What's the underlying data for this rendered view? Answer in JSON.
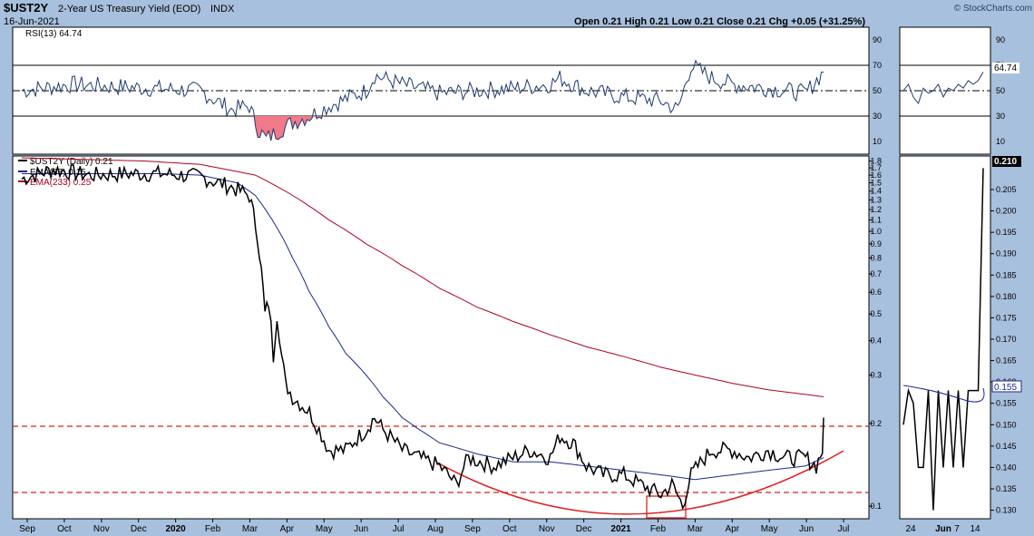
{
  "header": {
    "symbol": "$UST2Y",
    "name": "2-Year US Treasury Yield (EOD)",
    "exchange": "INDX",
    "date": "16-Jun-2021",
    "ohlc": "Open 0.21  High 0.21  Low 0.21  Close 0.21  Chg +0.05 (+31.25%)",
    "brand": "© StockCharts.com"
  },
  "rsi_panel": {
    "label": "RSI(13) 64.74",
    "value_label": "64.74",
    "ticks": [
      "90",
      "70",
      "50",
      "30",
      "10"
    ]
  },
  "price_panel": {
    "legend": [
      {
        "label": "$UST2Y (Daily) 0.21",
        "color": "#000000"
      },
      {
        "label": "EMA(55) 0.15",
        "color": "#1a2a8a"
      },
      {
        "label": "EMA(233) 0.25",
        "color": "#b00020"
      }
    ],
    "ticks": [
      "1.8",
      "1.7",
      "1.6",
      "1.5",
      "1.4",
      "1.3",
      "1.2",
      "1.1",
      "1.0",
      "0.9",
      "0.8",
      "0.7",
      "0.6",
      "0.5",
      "0.4",
      "0.3",
      "0.2",
      "0.1"
    ],
    "last_value_label": "0.210"
  },
  "zoom_panel": {
    "ticks": [
      "0.205",
      "0.200",
      "0.195",
      "0.190",
      "0.185",
      "0.180",
      "0.175",
      "0.170",
      "0.165",
      "0.160",
      "0.155",
      "0.150",
      "0.145",
      "0.140",
      "0.135",
      "0.130"
    ],
    "last_value_label": "0.210",
    "ema_value_label": "0.155",
    "x_labels": [
      "24",
      "Jun",
      "7",
      "14"
    ]
  },
  "x_axis_labels": [
    "Sep",
    "Oct",
    "Nov",
    "Dec",
    "2020",
    "Feb",
    "Mar",
    "Apr",
    "May",
    "Jun",
    "Jul",
    "Aug",
    "Sep",
    "Oct",
    "Nov",
    "Dec",
    "2021",
    "Feb",
    "Mar",
    "Apr",
    "May",
    "Jun",
    "Jul"
  ],
  "colors": {
    "background": "#a7c0dd",
    "panel": "#ffffff",
    "price": "#000000",
    "ema55": "#1a2a8a",
    "ema233": "#b00020",
    "rsi": "#1e3a6e",
    "rsi_fill": "#f07a8a",
    "annotation": "#d42020"
  },
  "chart_data": {
    "type": "line",
    "scale": "log",
    "x_range": [
      "2019-08-20",
      "2021-06-16"
    ],
    "ylim": [
      0.09,
      1.85
    ],
    "series": [
      {
        "name": "$UST2Y (Daily)",
        "x": [
          "2019-08-20",
          "2019-09-15",
          "2019-10-15",
          "2019-11-15",
          "2019-12-15",
          "2020-01-15",
          "2020-02-10",
          "2020-02-25",
          "2020-03-03",
          "2020-03-06",
          "2020-03-09",
          "2020-03-12",
          "2020-03-16",
          "2020-03-19",
          "2020-03-23",
          "2020-03-26",
          "2020-04-01",
          "2020-04-15",
          "2020-05-01",
          "2020-05-15",
          "2020-06-01",
          "2020-06-08",
          "2020-06-15",
          "2020-07-01",
          "2020-07-15",
          "2020-08-01",
          "2020-08-15",
          "2020-08-25",
          "2020-09-15",
          "2020-10-01",
          "2020-10-15",
          "2020-11-01",
          "2020-11-09",
          "2020-11-20",
          "2020-12-01",
          "2020-12-15",
          "2021-01-01",
          "2021-01-15",
          "2021-02-01",
          "2021-02-10",
          "2021-02-19",
          "2021-02-26",
          "2021-03-15",
          "2021-04-01",
          "2021-04-15",
          "2021-05-01",
          "2021-05-15",
          "2021-06-01",
          "2021-06-10",
          "2021-06-15",
          "2021-06-16"
        ],
        "y": [
          1.55,
          1.68,
          1.6,
          1.62,
          1.62,
          1.58,
          1.45,
          1.35,
          0.95,
          0.72,
          0.5,
          0.55,
          0.35,
          0.5,
          0.35,
          0.28,
          0.25,
          0.22,
          0.16,
          0.16,
          0.19,
          0.21,
          0.19,
          0.16,
          0.15,
          0.14,
          0.12,
          0.15,
          0.14,
          0.15,
          0.16,
          0.15,
          0.18,
          0.17,
          0.14,
          0.13,
          0.13,
          0.12,
          0.11,
          0.12,
          0.1,
          0.13,
          0.16,
          0.16,
          0.15,
          0.16,
          0.15,
          0.15,
          0.14,
          0.16,
          0.21
        ]
      },
      {
        "name": "EMA(55)",
        "x": [
          "2019-08-20",
          "2019-12-15",
          "2020-01-15",
          "2020-02-15",
          "2020-03-01",
          "2020-03-15",
          "2020-04-01",
          "2020-04-15",
          "2020-05-01",
          "2020-05-15",
          "2020-06-01",
          "2020-06-15",
          "2020-07-01",
          "2020-07-15",
          "2020-08-01",
          "2020-09-01",
          "2020-10-01",
          "2020-11-01",
          "2020-12-01",
          "2021-01-01",
          "2021-02-01",
          "2021-03-01",
          "2021-04-01",
          "2021-05-01",
          "2021-06-01",
          "2021-06-16"
        ],
        "y": [
          1.62,
          1.62,
          1.6,
          1.5,
          1.35,
          1.1,
          0.8,
          0.6,
          0.45,
          0.36,
          0.3,
          0.25,
          0.21,
          0.19,
          0.17,
          0.155,
          0.145,
          0.145,
          0.14,
          0.135,
          0.13,
          0.125,
          0.13,
          0.135,
          0.14,
          0.15
        ]
      },
      {
        "name": "EMA(233)",
        "x": [
          "2019-08-20",
          "2019-12-01",
          "2020-01-15",
          "2020-03-01",
          "2020-04-01",
          "2020-05-01",
          "2020-06-01",
          "2020-07-01",
          "2020-08-01",
          "2020-09-01",
          "2020-10-01",
          "2020-11-01",
          "2020-12-01",
          "2021-01-01",
          "2021-02-01",
          "2021-03-01",
          "2021-04-01",
          "2021-05-01",
          "2021-06-01",
          "2021-06-16"
        ],
        "y": [
          1.85,
          1.8,
          1.75,
          1.6,
          1.35,
          1.1,
          0.9,
          0.75,
          0.62,
          0.53,
          0.47,
          0.42,
          0.38,
          0.35,
          0.32,
          0.3,
          0.28,
          0.265,
          0.255,
          0.25
        ]
      }
    ],
    "rsi": {
      "name": "RSI(13)",
      "ylim": [
        0,
        100
      ],
      "levels": [
        30,
        50,
        70
      ],
      "x": [
        "2019-08-20",
        "2019-10-01",
        "2019-12-01",
        "2020-01-15",
        "2020-02-10",
        "2020-02-25",
        "2020-03-03",
        "2020-03-10",
        "2020-03-20",
        "2020-04-01",
        "2020-04-15",
        "2020-05-01",
        "2020-06-01",
        "2020-06-08",
        "2020-07-01",
        "2020-08-01",
        "2020-09-01",
        "2020-10-01",
        "2020-11-01",
        "2020-11-09",
        "2020-12-01",
        "2021-01-01",
        "2021-02-01",
        "2021-02-15",
        "2021-02-26",
        "2021-03-15",
        "2021-04-01",
        "2021-05-01",
        "2021-06-01",
        "2021-06-16"
      ],
      "y": [
        50,
        55,
        52,
        50,
        35,
        38,
        20,
        12,
        18,
        25,
        30,
        38,
        50,
        62,
        55,
        48,
        50,
        52,
        55,
        60,
        50,
        45,
        42,
        35,
        70,
        60,
        55,
        52,
        48,
        64.74
      ]
    },
    "annotations": [
      {
        "type": "hline",
        "y": 0.185,
        "style": "dashed"
      },
      {
        "type": "hline",
        "y": 0.109,
        "style": "dashed"
      },
      {
        "type": "arc",
        "label": ""
      },
      {
        "type": "box",
        "label": ""
      }
    ],
    "zoom": {
      "ylim": [
        0.128,
        0.212
      ],
      "y": [
        0.15,
        0.158,
        0.155,
        0.14,
        0.14,
        0.158,
        0.13,
        0.158,
        0.14,
        0.158,
        0.14,
        0.158,
        0.14,
        0.158,
        0.158,
        0.158,
        0.21
      ]
    }
  }
}
